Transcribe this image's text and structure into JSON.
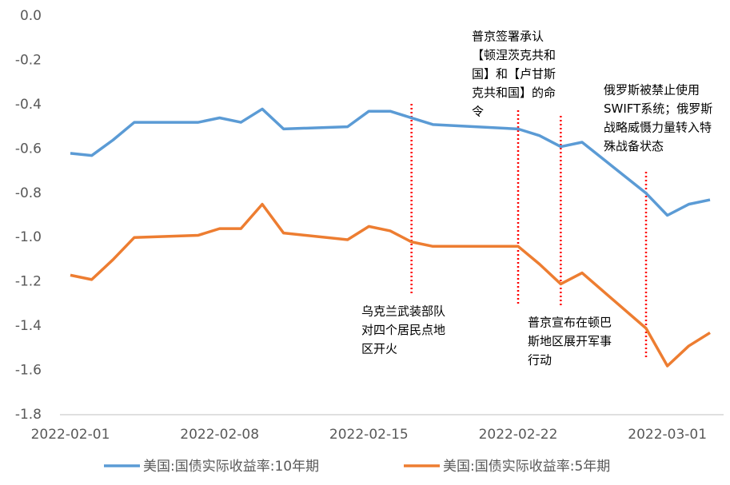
{
  "chart_data": {
    "type": "line",
    "x": [
      "2022-02-01",
      "2022-02-02",
      "2022-02-03",
      "2022-02-04",
      "2022-02-07",
      "2022-02-08",
      "2022-02-09",
      "2022-02-10",
      "2022-02-11",
      "2022-02-14",
      "2022-02-15",
      "2022-02-16",
      "2022-02-17",
      "2022-02-18",
      "2022-02-22",
      "2022-02-23",
      "2022-02-24",
      "2022-02-25",
      "2022-02-28",
      "2022-03-01",
      "2022-03-02",
      "2022-03-03"
    ],
    "series": [
      {
        "name": "美国:国债实际收益率:10年期",
        "color": "#5b9bd5",
        "values": [
          -0.62,
          -0.63,
          -0.56,
          -0.48,
          -0.48,
          -0.46,
          -0.48,
          -0.42,
          -0.51,
          -0.5,
          -0.43,
          -0.43,
          -0.46,
          -0.49,
          -0.51,
          -0.54,
          -0.59,
          -0.57,
          -0.8,
          -0.9,
          -0.85,
          -0.83
        ]
      },
      {
        "name": "美国:国债实际收益率:5年期",
        "color": "#ed7d31",
        "values": [
          -1.17,
          -1.19,
          -1.1,
          -1.0,
          -0.99,
          -0.96,
          -0.96,
          -0.85,
          -0.98,
          -1.01,
          -0.95,
          -0.97,
          -1.02,
          -1.04,
          -1.04,
          -1.12,
          -1.21,
          -1.16,
          -1.41,
          -1.58,
          -1.49,
          -1.43
        ]
      }
    ],
    "xlim": [
      "2022-02-01",
      "2022-03-03"
    ],
    "xticks": [
      "2022-02-01",
      "2022-02-08",
      "2022-02-15",
      "2022-02-22",
      "2022-03-01"
    ],
    "ylim": [
      -1.8,
      0
    ],
    "yticks": [
      {
        "value": 0,
        "label": "0.0"
      },
      -0.2,
      -0.4,
      -0.6,
      -0.8,
      {
        "value": -1,
        "label": "-1.0"
      },
      -1.2,
      -1.4,
      -1.6,
      -1.8
    ],
    "annotations": [
      {
        "x": "2022-02-17",
        "lines": [
          "乌克兰武装部队",
          "对四个居民点地",
          "区开火"
        ]
      },
      {
        "x": "2022-02-22",
        "lines": [
          "普京签署承认",
          "【顿涅茨克共和",
          "国】和【卢甘斯",
          "克共和国】的命",
          "令"
        ]
      },
      {
        "x": "2022-02-24",
        "lines": [
          "普京宣布在顿巴",
          "斯地区展开军事",
          "行动"
        ]
      },
      {
        "x": "2022-02-28",
        "lines": [
          "俄罗斯被禁止使用",
          "SWIFT系统；俄罗斯",
          "战略威慑力量转入特",
          "殊战备状态"
        ]
      }
    ],
    "annotation_color": "#ff0000",
    "legend": "bottom"
  }
}
